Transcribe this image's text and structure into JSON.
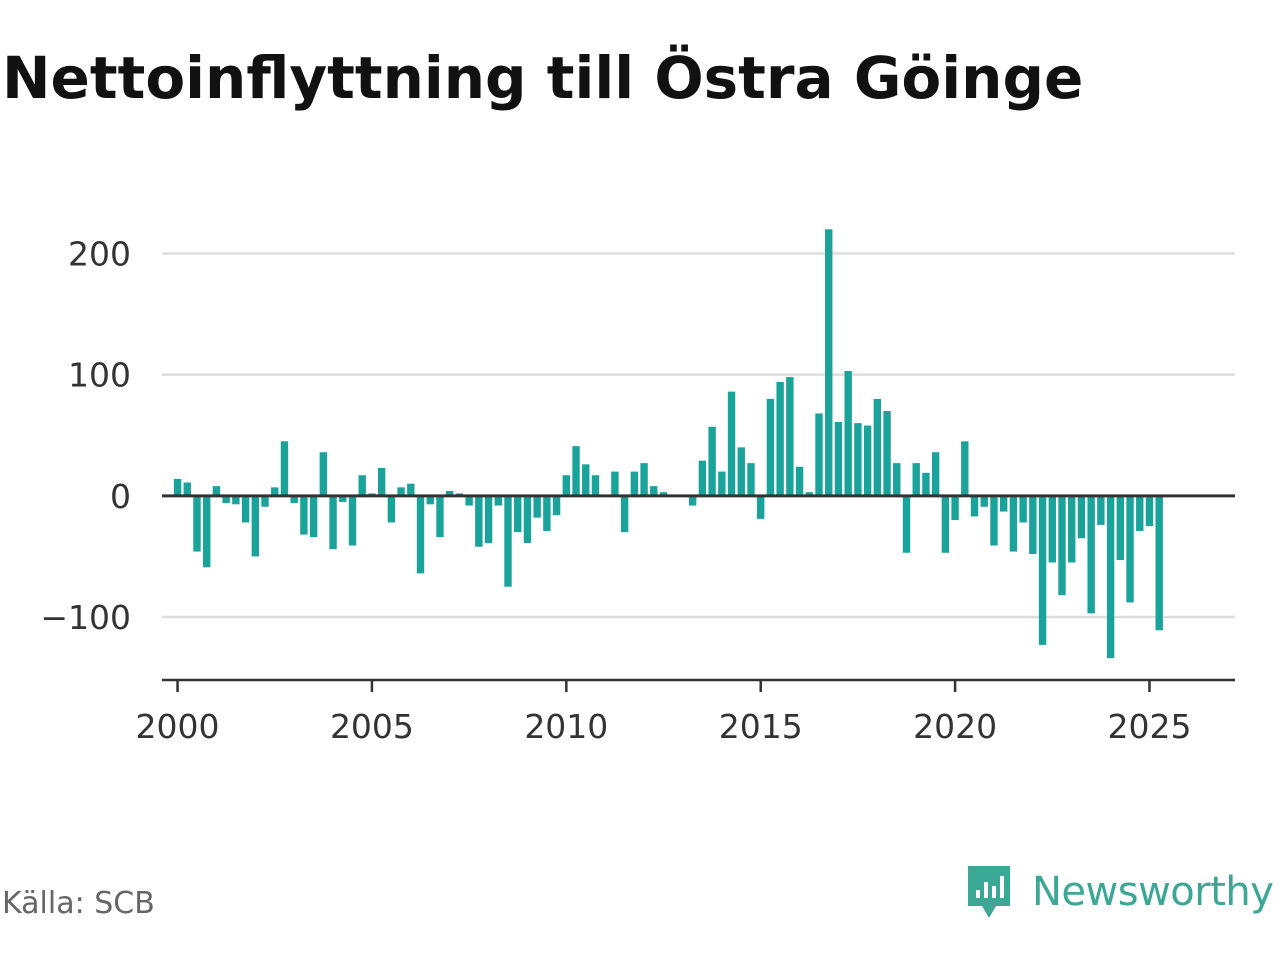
{
  "chart_data": {
    "type": "bar",
    "title": "Nettoinflyttning till Östra Göinge",
    "xlabel": "",
    "ylabel": "",
    "xlim": [
      1999.6,
      2027.2
    ],
    "ylim": [
      -152,
      226
    ],
    "x_ticks": [
      2000,
      2005,
      2010,
      2015,
      2020,
      2025
    ],
    "x_tick_labels": [
      "2000",
      "2005",
      "2010",
      "2015",
      "2020",
      "2025"
    ],
    "y_ticks": [
      200,
      100,
      0,
      -100
    ],
    "y_tick_labels": [
      "200",
      "100",
      "0",
      "−100"
    ],
    "grid": true,
    "start_year": 2000,
    "series": [
      {
        "color": "#1aa39a",
        "values": [
          14,
          11,
          -46,
          -59,
          8,
          -6,
          -7,
          -22,
          -50,
          -9,
          7,
          45,
          -6,
          -32,
          -34,
          36,
          -44,
          -5,
          -41,
          17,
          2,
          23,
          -22,
          7,
          10,
          -64,
          -7,
          -34,
          4,
          2,
          -8,
          -42,
          -39,
          -8,
          -75,
          -30,
          -39,
          -18,
          -29,
          -16,
          17,
          41,
          26,
          17,
          0,
          20,
          -30,
          20,
          27,
          8,
          3,
          0,
          1,
          -8,
          29,
          57,
          20,
          86,
          40,
          27,
          -19,
          80,
          94,
          98,
          24,
          3,
          68,
          220,
          61,
          103,
          60,
          58,
          80,
          70,
          27,
          -47,
          27,
          19,
          36,
          -47,
          -20,
          45,
          -17,
          -9,
          -41,
          -13,
          -46,
          -22,
          -48,
          -123,
          -55,
          -82,
          -55,
          -35,
          -97,
          -24,
          -134,
          -53,
          -88,
          -29,
          -25,
          -111
        ]
      }
    ]
  },
  "footer": {
    "source": "Källa: SCB",
    "brand": "Newsworthy"
  },
  "colors": {
    "bar": "#1aa39a",
    "brand": "#3aa894",
    "grid": "#dddddd",
    "axis": "#333333"
  }
}
